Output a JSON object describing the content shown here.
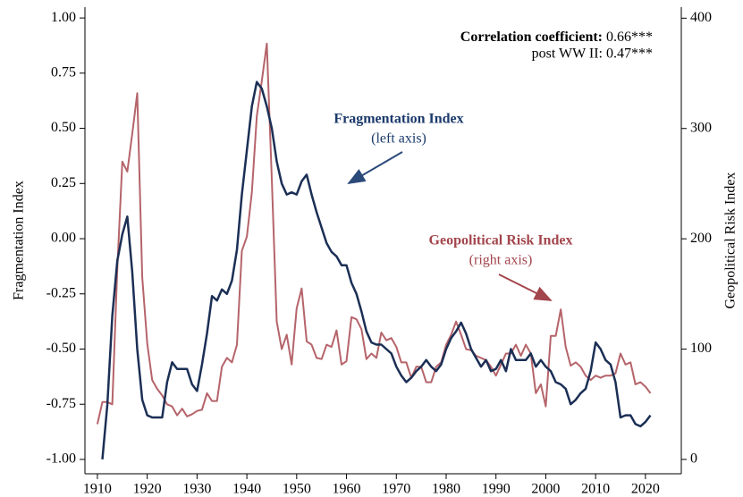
{
  "chart_data": {
    "type": "line",
    "ylabel": "Fragmentation Index",
    "y2label": "Geopolitical Risk Index",
    "annotations": [
      {
        "bold": "Correlation coefficient:",
        "text": "0.66***"
      },
      {
        "text": "post WW II: 0.47***"
      },
      {
        "bold": "Fragmentation Index",
        "text": "(left axis)"
      },
      {
        "bold": "Geopolitical Risk Index",
        "text": "(right axis)"
      }
    ],
    "xlim": [
      1907.5,
      2027.2
    ],
    "xticks": [
      1910,
      1920,
      1930,
      1940,
      1950,
      1960,
      1970,
      1980,
      1990,
      2000,
      2010,
      2020
    ],
    "ylim": [
      -1.065,
      1.049
    ],
    "yticks": [
      {
        "value": -1,
        "label": "-1.00"
      },
      {
        "value": -0.75,
        "label": "-0.75"
      },
      {
        "value": -0.5,
        "label": "-0.50"
      },
      {
        "value": -0.25,
        "label": "-0.25"
      },
      {
        "value": 0,
        "label": "0.00"
      },
      {
        "value": 0.25,
        "label": "0.25"
      },
      {
        "value": 0.5,
        "label": "0.50"
      },
      {
        "value": 0.75,
        "label": "0.75"
      },
      {
        "value": 1,
        "label": "1.00"
      }
    ],
    "y2lim": [
      -13,
      410
    ],
    "y2ticks": [
      0,
      100,
      200,
      300,
      400
    ],
    "x": [
      1910,
      1911,
      1912,
      1913,
      1914,
      1915,
      1916,
      1917,
      1918,
      1919,
      1920,
      1921,
      1922,
      1923,
      1924,
      1925,
      1926,
      1927,
      1928,
      1929,
      1930,
      1931,
      1932,
      1933,
      1934,
      1935,
      1936,
      1937,
      1938,
      1939,
      1940,
      1941,
      1942,
      1943,
      1944,
      1945,
      1946,
      1947,
      1948,
      1949,
      1950,
      1951,
      1952,
      1953,
      1954,
      1955,
      1956,
      1957,
      1958,
      1959,
      1960,
      1961,
      1962,
      1963,
      1964,
      1965,
      1966,
      1967,
      1968,
      1969,
      1970,
      1971,
      1972,
      1973,
      1974,
      1975,
      1976,
      1977,
      1978,
      1979,
      1980,
      1981,
      1982,
      1983,
      1984,
      1985,
      1986,
      1987,
      1988,
      1989,
      1990,
      1991,
      1992,
      1993,
      1994,
      1995,
      1996,
      1997,
      1998,
      1999,
      2000,
      2001,
      2002,
      2003,
      2004,
      2005,
      2006,
      2007,
      2008,
      2009,
      2010,
      2011,
      2012,
      2013,
      2014,
      2015,
      2016,
      2017,
      2018,
      2019,
      2020,
      2021
    ],
    "series": [
      {
        "name": "Fragmentation Index",
        "color": "#1b2f55",
        "axis": "y",
        "values": [
          null,
          -1.0,
          -0.75,
          -0.35,
          -0.1,
          0.02,
          0.1,
          -0.15,
          -0.5,
          -0.73,
          -0.8,
          -0.81,
          -0.81,
          -0.81,
          -0.65,
          -0.56,
          -0.59,
          -0.59,
          -0.59,
          -0.66,
          -0.69,
          -0.57,
          -0.43,
          -0.26,
          -0.28,
          -0.23,
          -0.25,
          -0.19,
          -0.05,
          0.2,
          0.4,
          0.6,
          0.71,
          0.68,
          0.6,
          0.5,
          0.35,
          0.25,
          0.2,
          0.21,
          0.2,
          0.26,
          0.29,
          0.2,
          0.12,
          0.05,
          -0.02,
          -0.06,
          -0.08,
          -0.12,
          -0.12,
          -0.2,
          -0.25,
          -0.33,
          -0.42,
          -0.47,
          -0.48,
          -0.48,
          -0.5,
          -0.52,
          -0.58,
          -0.62,
          -0.65,
          -0.63,
          -0.6,
          -0.58,
          -0.55,
          -0.58,
          -0.6,
          -0.57,
          -0.5,
          -0.45,
          -0.42,
          -0.38,
          -0.43,
          -0.5,
          -0.54,
          -0.58,
          -0.55,
          -0.6,
          -0.59,
          -0.55,
          -0.6,
          -0.5,
          -0.55,
          -0.55,
          -0.55,
          -0.52,
          -0.58,
          -0.55,
          -0.58,
          -0.6,
          -0.65,
          -0.66,
          -0.68,
          -0.75,
          -0.73,
          -0.7,
          -0.68,
          -0.6,
          -0.47,
          -0.5,
          -0.55,
          -0.57,
          -0.65,
          -0.81,
          -0.8,
          -0.8,
          -0.84,
          -0.85,
          -0.83,
          -0.8
        ]
      },
      {
        "name": "Geopolitical Risk Index",
        "color": "#b5646a",
        "axis": "y2",
        "values": [
          32,
          52,
          52,
          50,
          173,
          270,
          261,
          295,
          332,
          165,
          105,
          72,
          64,
          58,
          50,
          48,
          40,
          46,
          39,
          41,
          44,
          45,
          60,
          53,
          53,
          84,
          92,
          88,
          104,
          189,
          202,
          242,
          311,
          343,
          377,
          254,
          125,
          100,
          113,
          86,
          137,
          155,
          107,
          104,
          92,
          91,
          104,
          102,
          117,
          86,
          89,
          129,
          127,
          118,
          91,
          96,
          92,
          115,
          108,
          110,
          102,
          88,
          88,
          74,
          84,
          84,
          70,
          70,
          84,
          88,
          104,
          113,
          125,
          113,
          100,
          99,
          94,
          92,
          90,
          84,
          76,
          86,
          96,
          96,
          104,
          94,
          104,
          96,
          60,
          68,
          48,
          112,
          112,
          136,
          102,
          85,
          88,
          84,
          76,
          72,
          76,
          74,
          76,
          76,
          78,
          96,
          86,
          88,
          68,
          70,
          66,
          60
        ]
      }
    ]
  }
}
